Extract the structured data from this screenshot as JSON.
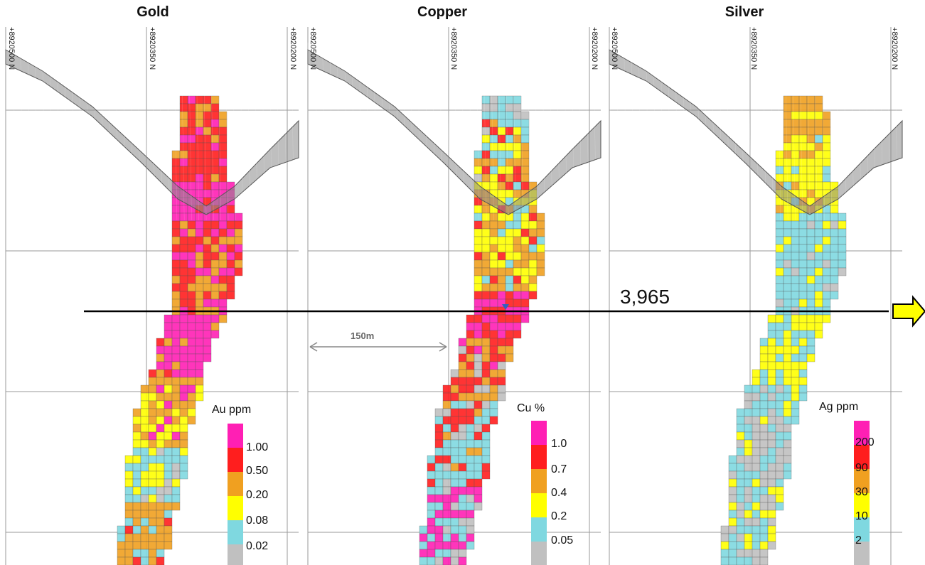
{
  "panels": [
    {
      "title": "Gold",
      "north_labels": [
        "+8920500 N",
        "+8920350 N",
        "+8920200 N"
      ],
      "legend": {
        "title": "Au ppm",
        "values": [
          "1.00",
          "0.50",
          "0.20",
          "0.08",
          "0.02"
        ],
        "colors": [
          "#ff1fb4",
          "#ff1e1e",
          "#f0a020",
          "#ffff00",
          "#7fd8e0",
          "#c0c0c0"
        ]
      }
    },
    {
      "title": "Copper",
      "north_labels": [
        "+8920500 N",
        "+8920350 N",
        "+8920200 N"
      ],
      "legend": {
        "title": "Cu %",
        "values": [
          "1.0",
          "0.7",
          "0.4",
          "0.2",
          "0.05"
        ],
        "colors": [
          "#ff1fb4",
          "#ff1e1e",
          "#f0a020",
          "#ffff00",
          "#7fd8e0",
          "#c0c0c0"
        ]
      }
    },
    {
      "title": "Silver",
      "north_labels": [
        "+8920500 N",
        "+8920350 N",
        "+8920200 N"
      ],
      "legend": {
        "title": "Ag ppm",
        "values": [
          "200",
          "90",
          "30",
          "10",
          "2"
        ],
        "colors": [
          "#ff1fb4",
          "#ff1e1e",
          "#f0a020",
          "#ffff00",
          "#7fd8e0",
          "#c0c0c0"
        ]
      }
    }
  ],
  "section_line": {
    "label": "3,965"
  },
  "scale_bar": {
    "label": "150m"
  },
  "colors": {
    "pink": "#ff1fb4",
    "red": "#ff1e1e",
    "orange": "#f0a020",
    "yellow": "#ffff00",
    "cyan": "#7fd8e0",
    "grey": "#c0c0c0",
    "pit_surface": "#8a8a8a",
    "arrow_fill": "#ffff00"
  }
}
